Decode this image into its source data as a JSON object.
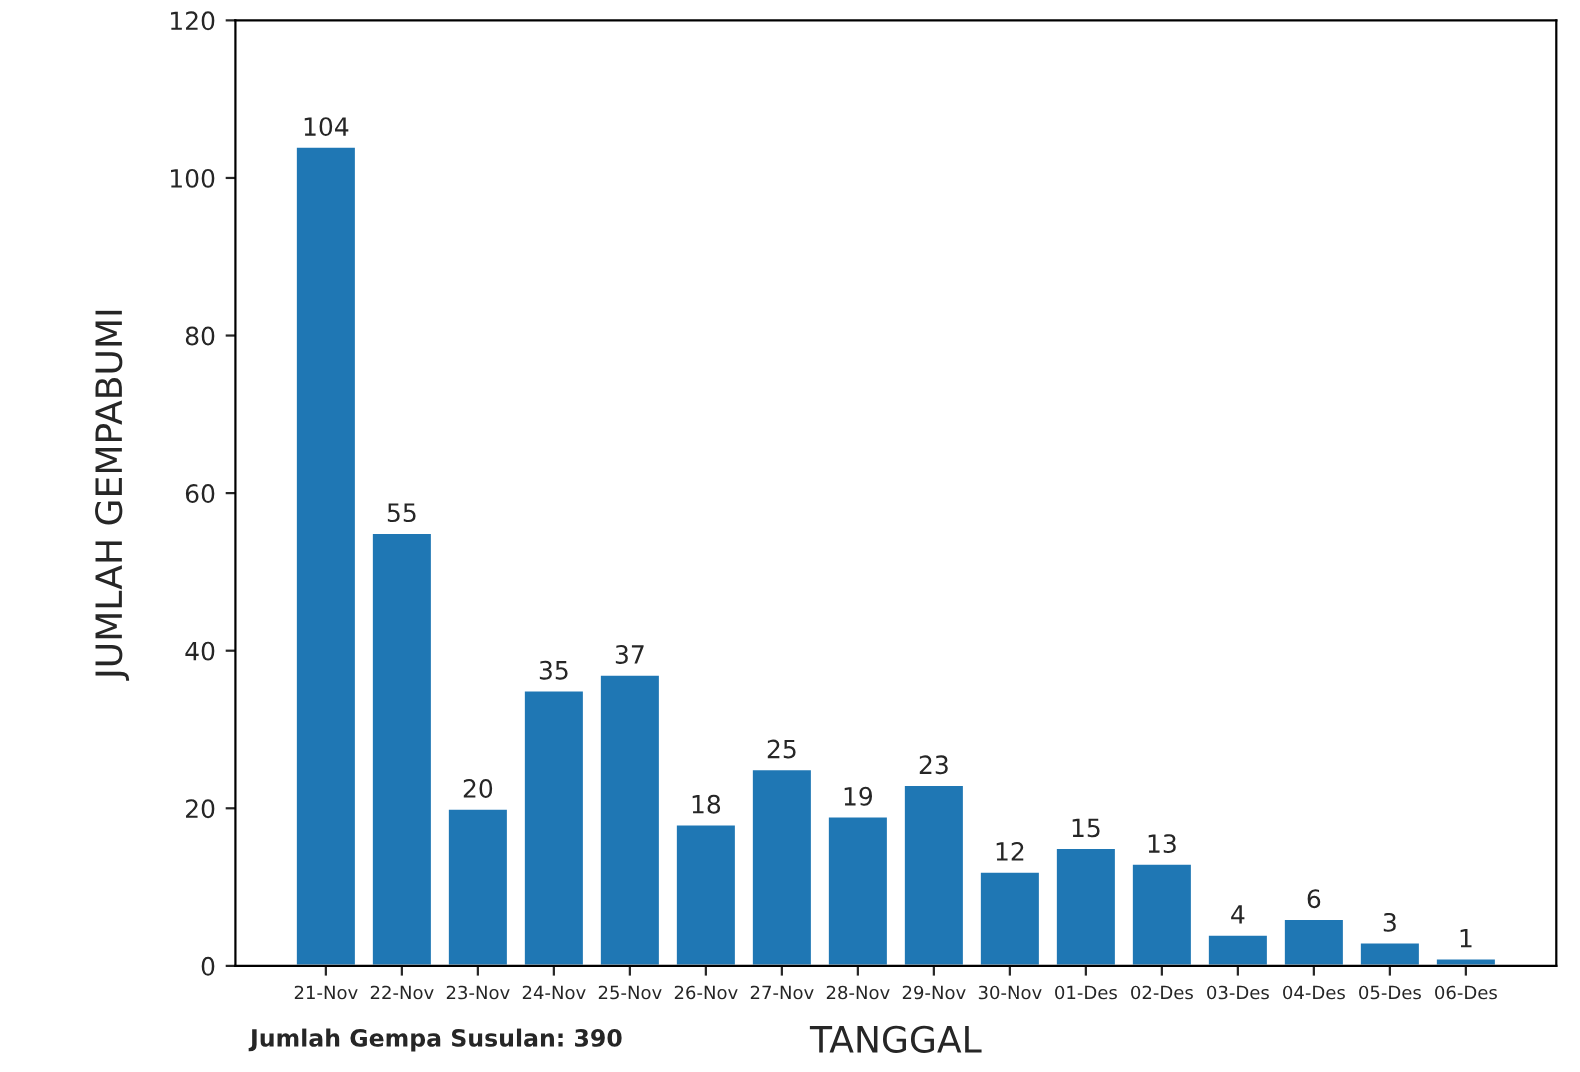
{
  "chart_data": {
    "type": "bar",
    "xlabel": "TANGGAL",
    "ylabel": "JUMLAH GEMPABUMI",
    "categories": [
      "21-Nov",
      "22-Nov",
      "23-Nov",
      "24-Nov",
      "25-Nov",
      "26-Nov",
      "27-Nov",
      "28-Nov",
      "29-Nov",
      "30-Nov",
      "01-Des",
      "02-Des",
      "03-Des",
      "04-Des",
      "05-Des",
      "06-Des"
    ],
    "values": [
      104,
      55,
      20,
      35,
      37,
      18,
      25,
      19,
      23,
      12,
      15,
      13,
      4,
      6,
      3,
      1
    ],
    "color": "#1f77b4",
    "ylim": [
      0,
      120
    ],
    "yticks": [
      0,
      20,
      40,
      60,
      80,
      100,
      120
    ],
    "data_labels": true,
    "grid": false,
    "legend": false,
    "annotations": [
      "Jumlah Gempa Susulan: 390"
    ]
  }
}
